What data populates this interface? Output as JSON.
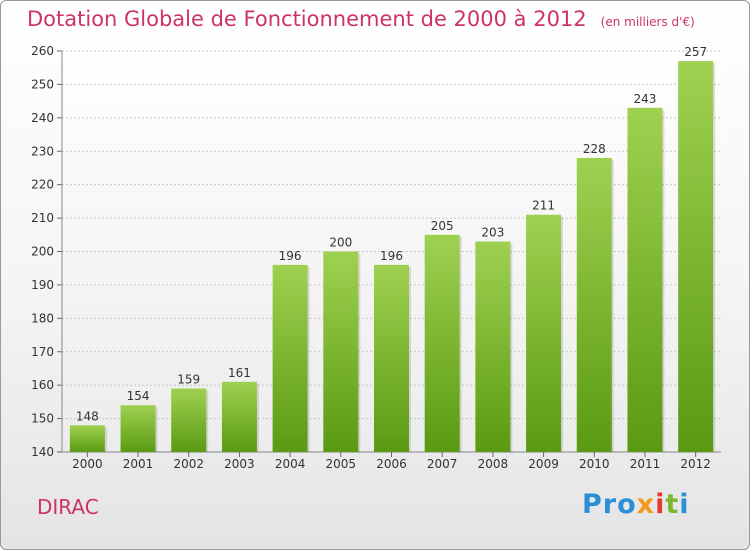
{
  "title": "Dotation Globale de Fonctionnement de 2000 à 2012",
  "unit_note": "(en milliers d'€)",
  "town": "DIRAC",
  "logo": {
    "text": "Proxiti",
    "parts": [
      "Pro",
      "x",
      "i",
      "t",
      "i"
    ]
  },
  "colors": {
    "title": "#cc3366",
    "bar_top": "#9fd150",
    "bar_bottom": "#5a9a12",
    "grid": "#c8c8c8"
  },
  "chart_data": {
    "type": "bar",
    "title": "Dotation Globale de Fonctionnement de 2000 à 2012",
    "subtitle": "(en milliers d'€)",
    "xlabel": "",
    "ylabel": "",
    "categories": [
      "2000",
      "2001",
      "2002",
      "2003",
      "2004",
      "2005",
      "2006",
      "2007",
      "2008",
      "2009",
      "2010",
      "2011",
      "2012"
    ],
    "values": [
      148,
      154,
      159,
      161,
      196,
      200,
      196,
      205,
      203,
      211,
      228,
      243,
      257
    ],
    "data_labels": [
      "148",
      "154",
      "159",
      "161",
      "196",
      "200",
      "196",
      "205",
      "203",
      "211",
      "228",
      "243",
      "257"
    ],
    "ylim": [
      140,
      260
    ],
    "yticks": [
      140,
      150,
      160,
      170,
      180,
      190,
      200,
      210,
      220,
      230,
      240,
      250,
      260
    ],
    "grid": true,
    "legend": "none"
  }
}
